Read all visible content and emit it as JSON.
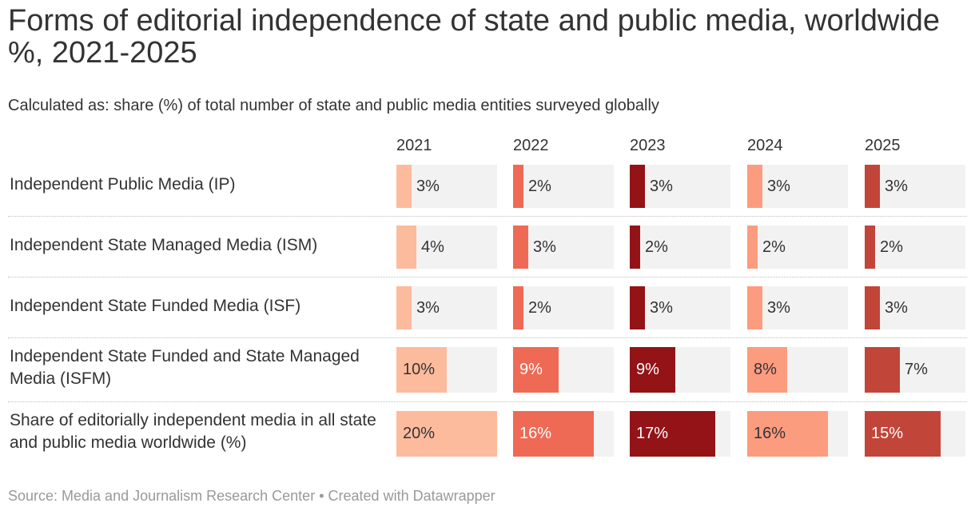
{
  "header": {
    "title": "Forms of editorial independence of state and public media, worldwide %, 2021-2025",
    "subtitle": "Calculated as: share (%) of total number of state and public media entities surveyed globally"
  },
  "footer": {
    "source": "Source: Media and Journalism Research Center",
    "separator": "•",
    "credit": "Created with Datawrapper"
  },
  "colors": {
    "2021": "#fdbb9e",
    "2022": "#ee6a55",
    "2023": "#931317",
    "2024": "#fc9c7f",
    "2025": "#c2453a",
    "cell_background": "#f2f2f2",
    "text_dark": "#333333",
    "text_light": "#ffffff"
  },
  "chart_data": {
    "type": "table",
    "title": "Forms of editorial independence of state and public media, worldwide %, 2021-2025",
    "columns": [
      "2021",
      "2022",
      "2023",
      "2024",
      "2025"
    ],
    "unit": "%",
    "scale_max": 20,
    "rows": [
      {
        "label": "Independent Public Media (IP)",
        "values": [
          3,
          2,
          3,
          3,
          3
        ]
      },
      {
        "label": "Independent State Managed Media (ISM)",
        "values": [
          4,
          3,
          2,
          2,
          2
        ]
      },
      {
        "label": "Independent State Funded Media (ISF)",
        "values": [
          3,
          2,
          3,
          3,
          3
        ]
      },
      {
        "label": "Independent State Funded and State Managed Media (ISFM)",
        "values": [
          10,
          9,
          9,
          8,
          7
        ]
      },
      {
        "label": "Share of editorially independent media in all state and public media worldwide (%)",
        "values": [
          20,
          16,
          17,
          16,
          15
        ]
      }
    ]
  }
}
